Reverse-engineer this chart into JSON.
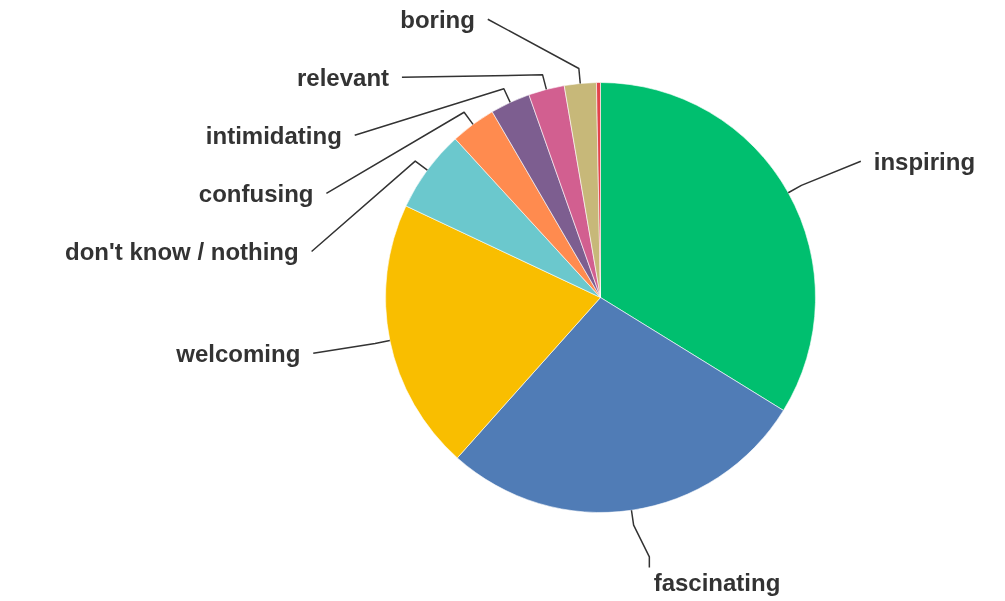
{
  "chart_data": {
    "type": "pie",
    "categories": [
      "inspiring",
      "fascinating",
      "welcoming",
      "don't know / nothing",
      "confusing",
      "intimidating",
      "relevant",
      "boring",
      null
    ],
    "values": [
      33.8,
      27.8,
      20.4,
      6.2,
      3.4,
      3.0,
      2.7,
      2.4,
      0.3
    ],
    "colors": [
      "#00bf6f",
      "#507cb6",
      "#f9be00",
      "#6bc8cd",
      "#ff8b4f",
      "#7d5e90",
      "#d25f90",
      "#c7b879",
      "#e2444b"
    ]
  }
}
